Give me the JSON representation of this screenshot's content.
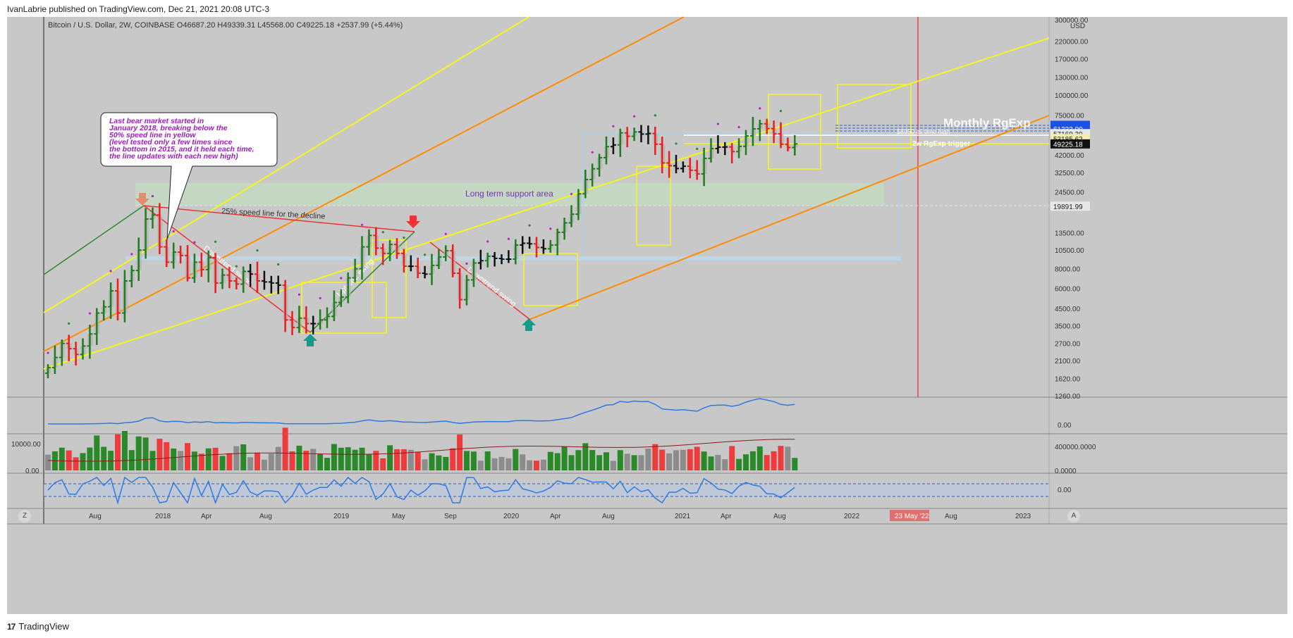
{
  "header": {
    "publisher": "IvanLabrie published on TradingView.com, Dec 21, 2021 20:08 UTC-3"
  },
  "symbol_line": "Bitcoin / U.S. Dollar, 2W, COINBASE  O46687.20  H49339.31  L45568.00  C49225.18  +2537.99 (+5.44%)",
  "footer": {
    "brand": "TradingView",
    "logo": "17"
  },
  "corner_buttons": {
    "left": "Z",
    "right": "A"
  },
  "annotations": {
    "callout_lines": [
      "Last bear market started in",
      "January 2018, breaking below the",
      "50% speed line in yellow",
      "(level tested only a few times since",
      "the bottom in 2015, and it held each time,",
      "the line updates with each new high)"
    ],
    "support_area": "Long term support area",
    "speed_line": "25% speed line for the decline",
    "downtrend1": "Downtrend swing",
    "uptrend": "Uptrend swing",
    "downtrend2": "Downtrend swing",
    "monthly": "Monthly RgExp",
    "ath": "$6950 all time high",
    "trigger": "2w RgExp trigger",
    "date_marker": "23 May '22"
  },
  "colors": {
    "bg": "#c8c8c8",
    "up": "#1e7d1e",
    "down": "#ee1c1c",
    "yellow": "#f5f51e",
    "orange": "#ff8c00",
    "callout_text": "#9b1fb5",
    "blue_line": "#2f7ae5",
    "price_tag": "#1e50e6"
  },
  "chart_data": [
    {
      "type": "candlestick",
      "title": "Bitcoin / U.S. Dollar, 2W, COINBASE",
      "y_scale": "log",
      "ylim": [
        1260,
        300000
      ],
      "ylabel": "USD",
      "y_ticks": [
        "300000.00",
        "220000.00",
        "170000.00",
        "130000.00",
        "100000.00",
        "75000.00",
        "42000.00",
        "32500.00",
        "24500.00",
        "13500.00",
        "10500.00",
        "8000.00",
        "6000.00",
        "4500.00",
        "3500.00",
        "2700.00",
        "2100.00",
        "1620.00",
        "1260.00"
      ],
      "x_ticks": [
        "Aug",
        "2018",
        "Apr",
        "Aug",
        "2019",
        "May",
        "Sep",
        "2020",
        "Apr",
        "Aug",
        "2021",
        "Apr",
        "Aug",
        "2022",
        "Apr",
        "Aug",
        "2023"
      ],
      "price_labels": [
        {
          "value": "64500.00",
          "kind": "blue"
        },
        {
          "value": "62916.50",
          "kind": "blue"
        },
        {
          "value": "61333.00",
          "kind": "blue"
        },
        {
          "value": "57169.39",
          "kind": "white"
        },
        {
          "value": "53185.62",
          "kind": "yellow"
        },
        {
          "value": "49225.18",
          "kind": "black"
        },
        {
          "value": "19891.99",
          "kind": "white"
        }
      ],
      "closes": [
        1900,
        2200,
        2700,
        2500,
        2300,
        2600,
        3100,
        4200,
        4600,
        5800,
        4200,
        6700,
        7800,
        10500,
        16500,
        17500,
        11000,
        8800,
        10200,
        9700,
        7000,
        8800,
        7900,
        9400,
        6500,
        7300,
        6700,
        6400,
        7700,
        7400,
        6700,
        6600,
        6500,
        6300,
        3800,
        3400,
        3900,
        3600,
        3600,
        3800,
        4000,
        4900,
        5300,
        7000,
        8000,
        11000,
        13000,
        10800,
        10000,
        11400,
        10000,
        8300,
        8300,
        7500,
        7400,
        8400,
        9500,
        10400,
        7500,
        5100,
        6800,
        8700,
        9000,
        9600,
        9300,
        9200,
        9200,
        11300,
        11600,
        11500,
        10900,
        10700,
        11300,
        13600,
        15600,
        17700,
        23800,
        29300,
        34300,
        40300,
        47300,
        48500,
        57800,
        55000,
        58600,
        56800,
        57300,
        49000,
        37300,
        35800,
        34400,
        35600,
        33500,
        31800,
        39900,
        46000,
        47000,
        47100,
        44000,
        47500,
        55300,
        61300,
        66000,
        61500,
        57000,
        49000,
        46700,
        49225
      ]
    },
    {
      "type": "line",
      "panel": "indicator 1",
      "y_ticks": [
        "0.00"
      ]
    },
    {
      "type": "bar",
      "panel": "volume",
      "y_ticks_left": [
        "10000.00",
        "0.00"
      ],
      "y_ticks_right": [
        "400000.0000",
        "0.0000"
      ]
    },
    {
      "type": "line",
      "panel": "oscillator",
      "y_ticks": [
        "0.00"
      ]
    }
  ]
}
